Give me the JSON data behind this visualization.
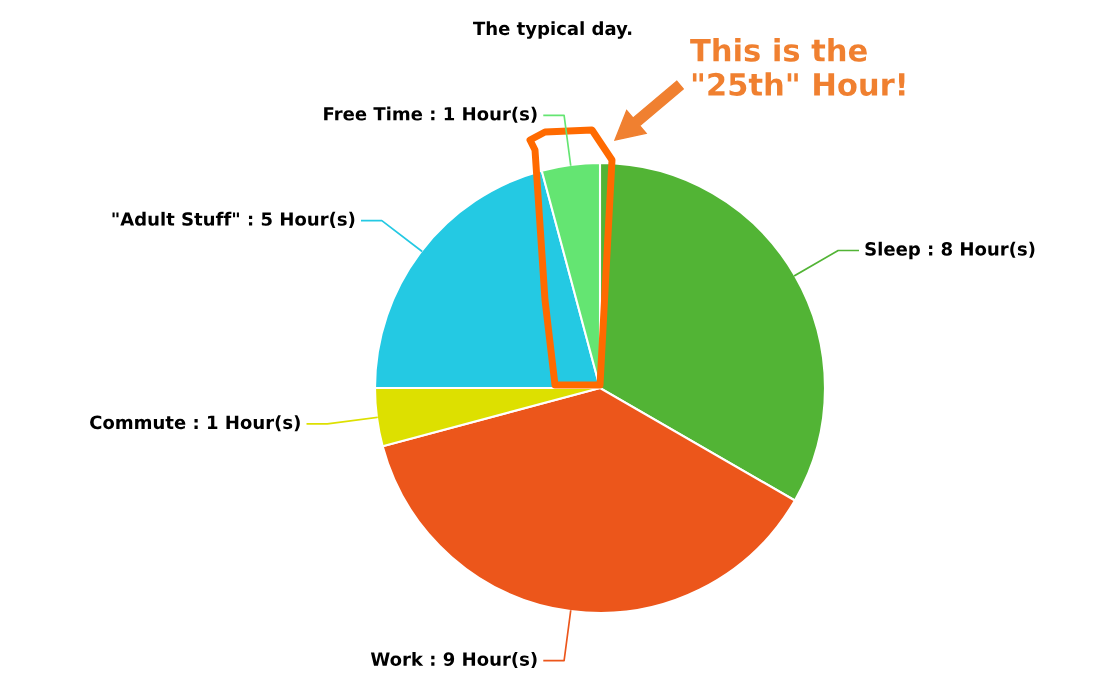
{
  "chart_data": {
    "type": "pie",
    "title": "The typical day.",
    "categories": [
      "Sleep : 8 Hour(s)",
      "Work : 9 Hour(s)",
      "Commute : 1 Hour(s)",
      "\"Adult Stuff\" : 5 Hour(s)",
      "Free Time : 1 Hour(s)"
    ],
    "values": [
      8,
      9,
      1,
      5,
      1
    ],
    "colors": [
      "#52b435",
      "#ec561b",
      "#dde000",
      "#24c9e3",
      "#64e572"
    ],
    "annotations": [
      "This is the\n\"25th\" Hour!"
    ],
    "legend": false
  }
}
